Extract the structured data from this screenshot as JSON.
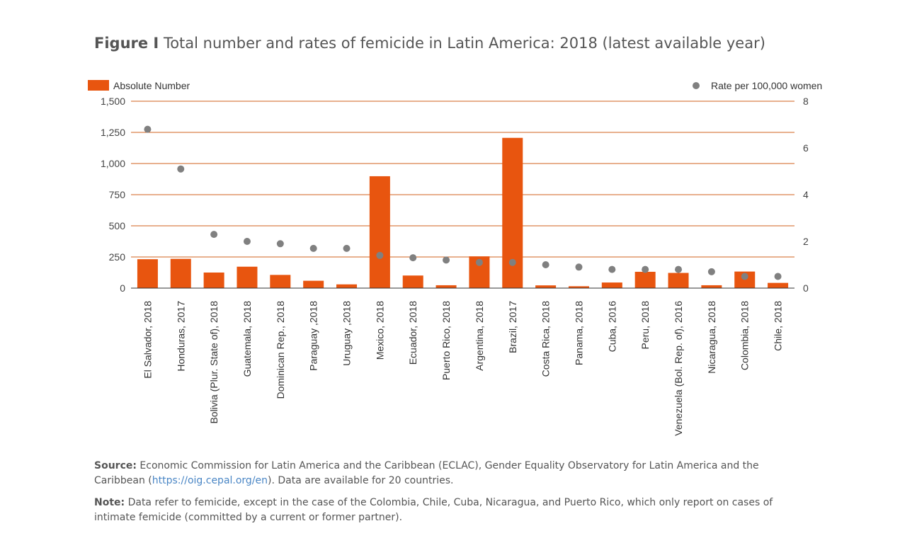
{
  "figure": {
    "label": "Figure I",
    "title": "Total number and rates of femicide in Latin America: 2018 (latest available year)"
  },
  "chart_data": {
    "type": "bar",
    "categories": [
      "El Salvador, 2018",
      "Honduras, 2017",
      "Bolivia (Plur. State of), 2018",
      "Guatemala, 2018",
      "Dominican Rep., 2018",
      "Paraguay ,2018",
      "Uruguay ,2018",
      "Mexico, 2018",
      "Ecuador, 2018",
      "Puerto Rico, 2018",
      "Argentina, 2018",
      "Brazil, 2017",
      "Costa Rica, 2018",
      "Panama, 2018",
      "Cuba, 2016",
      "Peru, 2018",
      "Venezuela (Bol. Rep. of), 2016",
      "Nicaragua, 2018",
      "Colombia, 2018",
      "Chile, 2018"
    ],
    "series": [
      {
        "name": "Absolute Number",
        "kind": "bar",
        "axis": "left",
        "color": "#e8550f",
        "values": [
          232,
          235,
          125,
          172,
          106,
          59,
          30,
          898,
          101,
          23,
          255,
          1206,
          22,
          15,
          45,
          131,
          122,
          23,
          133,
          42
        ]
      },
      {
        "name": "Rate per 100,000 women",
        "kind": "scatter",
        "axis": "right",
        "color": "#808080",
        "values": [
          6.8,
          5.1,
          2.3,
          2.0,
          1.9,
          1.7,
          1.7,
          1.4,
          1.3,
          1.2,
          1.1,
          1.1,
          1.0,
          0.9,
          0.8,
          0.8,
          0.8,
          0.7,
          0.5,
          0.5
        ]
      }
    ],
    "y_left": {
      "min": 0,
      "max": 1500,
      "ticks": [
        0,
        250,
        500,
        750,
        1000,
        1250,
        1500
      ],
      "tick_labels": [
        "0",
        "250",
        "500",
        "750",
        "1,000",
        "1,250",
        "1,500"
      ]
    },
    "y_right": {
      "min": 0,
      "max": 8,
      "ticks": [
        0,
        2,
        4,
        6,
        8
      ],
      "tick_labels": [
        "0",
        "2",
        "4",
        "6",
        "8"
      ]
    },
    "legend_position": "top"
  },
  "source": {
    "label": "Source:",
    "text": "Economic Commission for Latin America and the Caribbean (ECLAC), Gender Equality Observatory for Latin America and the Caribbean (",
    "link": "https://oig.cepal.org/en",
    "text_after": "). Data are available for 20 countries."
  },
  "note": {
    "label": "Note:",
    "text": "Data refer to femicide, except in the case of the Colombia, Chile, Cuba, Nicaragua, and Puerto Rico, which only report on cases of intimate femicide (committed by a current or former partner)."
  }
}
